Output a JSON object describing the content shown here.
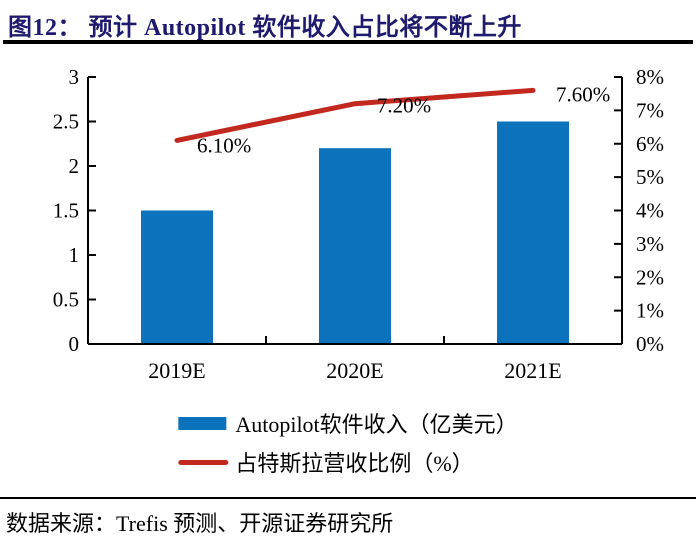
{
  "title": "图12： 预计 Autopilot 软件收入占比将不断上升",
  "source": "数据来源：Trefis 预测、开源证券研究所",
  "colors": {
    "bar": "#0d72bc",
    "line": "#c3281f",
    "title": "#1e1b6e",
    "axis": "#000000"
  },
  "chart_data": {
    "type": "combo",
    "categories": [
      "2019E",
      "2020E",
      "2021E"
    ],
    "series": [
      {
        "name": "Autopilot软件收入（亿美元）",
        "type": "bar",
        "axis": "left",
        "color": "#0d72bc",
        "values": [
          1.5,
          2.2,
          2.5
        ]
      },
      {
        "name": "占特斯拉营收比例（%）",
        "type": "line",
        "axis": "right",
        "color": "#c3281f",
        "values": [
          6.1,
          7.2,
          7.6
        ],
        "point_labels": [
          "6.10%",
          "7.20%",
          "7.60%"
        ]
      }
    ],
    "y_axis_left": {
      "min": 0,
      "max": 3,
      "step": 0.5,
      "tick_labels": [
        "0",
        "0.5",
        "1",
        "1.5",
        "2",
        "2.5",
        "3"
      ]
    },
    "y_axis_right": {
      "min": 0,
      "max": 8,
      "step": 1,
      "tick_labels": [
        "0%",
        "1%",
        "2%",
        "3%",
        "4%",
        "5%",
        "6%",
        "7%",
        "8%"
      ]
    },
    "grid": false,
    "legend_position": "bottom"
  }
}
